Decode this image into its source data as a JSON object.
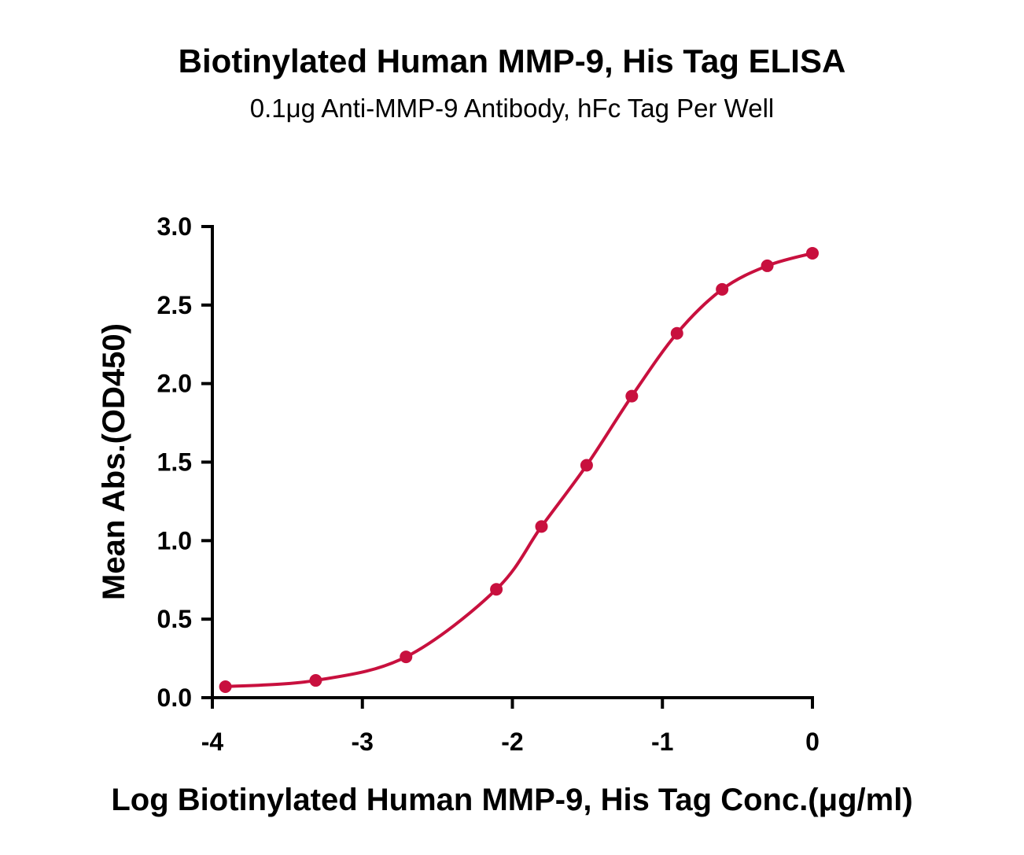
{
  "chart_data": {
    "type": "scatter",
    "title": "Biotinylated Human MMP-9, His Tag ELISA",
    "subtitle": "0.1μg Anti-MMP-9 Antibody, hFc Tag Per Well",
    "xlabel": "Log Biotinylated Human MMP-9, His Tag Conc.(μg/ml)",
    "ylabel": "Mean Abs.(OD450)",
    "xlim": [
      -4,
      0
    ],
    "ylim": [
      0,
      3.0
    ],
    "x_ticks": [
      -4,
      -3,
      -2,
      -1,
      0
    ],
    "x_tick_labels": [
      "-4",
      "-3",
      "-2",
      "-1",
      "0"
    ],
    "y_ticks": [
      0,
      0.5,
      1.0,
      1.5,
      2.0,
      2.5,
      3.0
    ],
    "y_tick_labels": [
      "0.0",
      "0.5",
      "1.0",
      "1.5",
      "2.0",
      "2.5",
      "3.0"
    ],
    "grid": false,
    "legend": "none",
    "series": [
      {
        "color": "#c8103e",
        "x": [
          -3.913,
          -3.311,
          -2.709,
          -2.107,
          -1.806,
          -1.505,
          -1.204,
          -0.903,
          -0.602,
          -0.301,
          0.0
        ],
        "y": [
          0.07,
          0.11,
          0.26,
          0.69,
          1.09,
          1.48,
          1.92,
          2.32,
          2.6,
          2.75,
          2.83
        ],
        "fit": "four-parameter logistic curve through the points"
      }
    ]
  }
}
